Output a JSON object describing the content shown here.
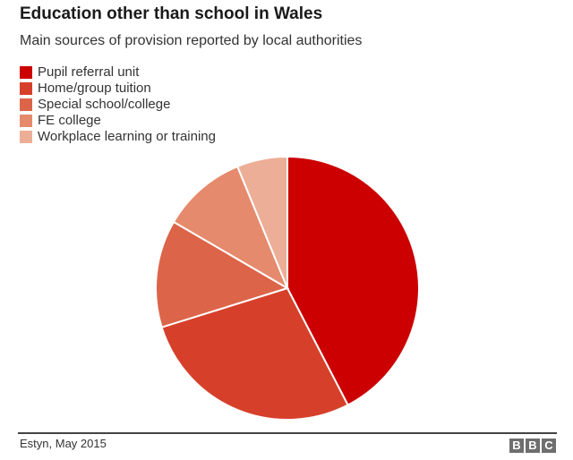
{
  "chart_data": {
    "type": "pie",
    "title": "Education other than school in Wales",
    "subtitle": "Main sources of provision reported by local authorities",
    "categories": [
      "Pupil referral unit",
      "Home/group tuition",
      "Special school/college",
      "FE college",
      "Workplace learning or training"
    ],
    "values": [
      42.4,
      27.8,
      13.2,
      10.4,
      6.2
    ],
    "colors": [
      "#cc0000",
      "#d6402b",
      "#dc6448",
      "#e58a6c",
      "#ecae96"
    ],
    "legend_position": "top-left",
    "start_angle": "12 o'clock, clockwise"
  },
  "header": {
    "title": "Education other than school in Wales",
    "subtitle": "Main sources of provision reported by local authorities"
  },
  "legend": {
    "items": [
      {
        "label": "Pupil referral unit",
        "color": "#cc0000"
      },
      {
        "label": "Home/group tuition",
        "color": "#d6402b"
      },
      {
        "label": "Special school/college",
        "color": "#dc6448"
      },
      {
        "label": "FE college",
        "color": "#e58a6c"
      },
      {
        "label": "Workplace learning or training",
        "color": "#ecae96"
      }
    ]
  },
  "footer": {
    "source": "Estyn, May 2015",
    "logo": [
      "B",
      "B",
      "C"
    ]
  }
}
